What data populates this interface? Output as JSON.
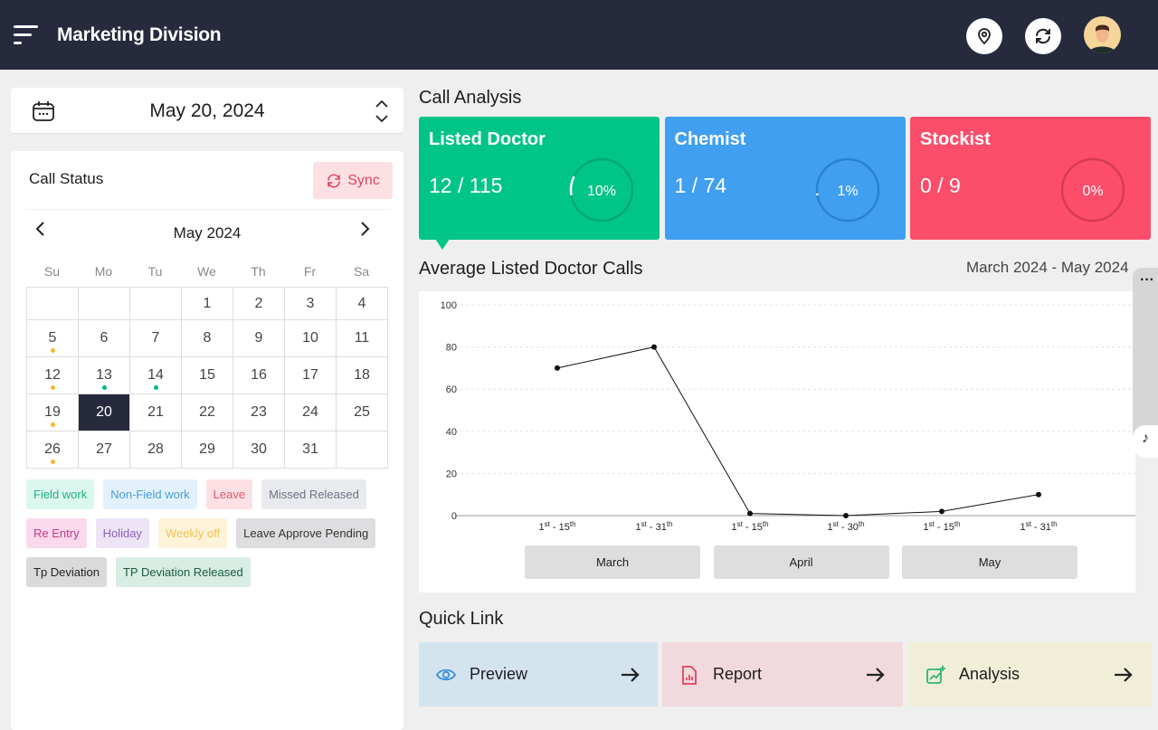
{
  "header": {
    "title": "Marketing Division",
    "icons": [
      "menu-icon",
      "location-icon",
      "refresh-icon",
      "avatar"
    ]
  },
  "date_selector": {
    "value": "May 20, 2024"
  },
  "call_status": {
    "title": "Call Status",
    "sync_label": "Sync",
    "month_label": "May 2024",
    "weekdays": [
      "Su",
      "Mo",
      "Tu",
      "We",
      "Th",
      "Fr",
      "Sa"
    ],
    "weeks": [
      [
        "",
        "",
        "",
        "1",
        "2",
        "3",
        "4"
      ],
      [
        "5",
        "6",
        "7",
        "8",
        "9",
        "10",
        "11"
      ],
      [
        "12",
        "13",
        "14",
        "15",
        "16",
        "17",
        "18"
      ],
      [
        "19",
        "20",
        "21",
        "22",
        "23",
        "24",
        "25"
      ],
      [
        "26",
        "27",
        "28",
        "29",
        "30",
        "31",
        ""
      ]
    ],
    "selected": "20",
    "dots": {
      "5": "#f5b82e",
      "12": "#f5b82e",
      "13": "#00b884",
      "14": "#00b884",
      "19": "#f5b82e",
      "26": "#f5b82e"
    },
    "legend": [
      {
        "label": "Field work",
        "bg": "#dcf7ee",
        "fg": "#1fb07c"
      },
      {
        "label": "Non-Field work",
        "bg": "#e2f1fc",
        "fg": "#4a9fd6"
      },
      {
        "label": "Leave",
        "bg": "#fde0e4",
        "fg": "#e0566d"
      },
      {
        "label": "Missed Released",
        "bg": "#e8eaee",
        "fg": "#6d7380"
      },
      {
        "label": "Re Entry",
        "bg": "#fbd9ec",
        "fg": "#c23a87"
      },
      {
        "label": "Holiday",
        "bg": "#ede4f5",
        "fg": "#8e5fb8"
      },
      {
        "label": "Weekly off",
        "bg": "#fdf3d9",
        "fg": "#efc35a"
      },
      {
        "label": "Leave Approve Pending",
        "bg": "#dedee0",
        "fg": "#333"
      },
      {
        "label": "Tp Deviation",
        "bg": "#dadada",
        "fg": "#222"
      },
      {
        "label": "TP Deviation Released",
        "bg": "#d8ede4",
        "fg": "#1a5c3f"
      }
    ]
  },
  "call_analysis": {
    "title": "Call Analysis",
    "cards": [
      {
        "title": "Listed Doctor",
        "value": "12 / 115",
        "percent_label": "10%",
        "percent": 10,
        "color": "#00c586",
        "ring": "#00a96f"
      },
      {
        "title": "Chemist",
        "value": "1 / 74",
        "percent_label": "1%",
        "percent": 1,
        "color": "#409ff0",
        "ring": "#2a82d0"
      },
      {
        "title": "Stockist",
        "value": "0 / 9",
        "percent_label": "0%",
        "percent": 0,
        "color": "#fc4d6b",
        "ring": "#d63a56"
      }
    ]
  },
  "chart_section": {
    "title": "Average Listed Doctor Calls",
    "range": "March 2024 - May 2024",
    "months": [
      "March",
      "April",
      "May"
    ]
  },
  "chart_data": {
    "type": "line",
    "title": "Average Listed Doctor Calls",
    "x": [
      "1st - 15th",
      "1st - 31th",
      "1st - 15th",
      "1st - 30th",
      "1st - 15th",
      "1st - 31th"
    ],
    "x_parts": [
      [
        "1",
        "st",
        " - 15",
        "th"
      ],
      [
        "1",
        "st",
        " - 31",
        "th"
      ],
      [
        "1",
        "st",
        " - 15",
        "th"
      ],
      [
        "1",
        "st",
        " - 30",
        "th"
      ],
      [
        "1",
        "st",
        " - 15",
        "th"
      ],
      [
        "1",
        "st",
        " - 31",
        "th"
      ]
    ],
    "values": [
      70,
      80,
      1,
      0,
      2,
      10
    ],
    "ylim": [
      0,
      100
    ],
    "yticks": [
      "0",
      "20",
      "40",
      "60",
      "80",
      "100"
    ],
    "grid": true
  },
  "quick_link": {
    "title": "Quick Link",
    "items": [
      {
        "label": "Preview",
        "bg": "#d4e4ef",
        "icon": "eye-icon"
      },
      {
        "label": "Report",
        "bg": "#f2d9dd",
        "icon": "report-icon"
      },
      {
        "label": "Analysis",
        "bg": "#f0eed6",
        "icon": "chart-icon"
      }
    ]
  }
}
